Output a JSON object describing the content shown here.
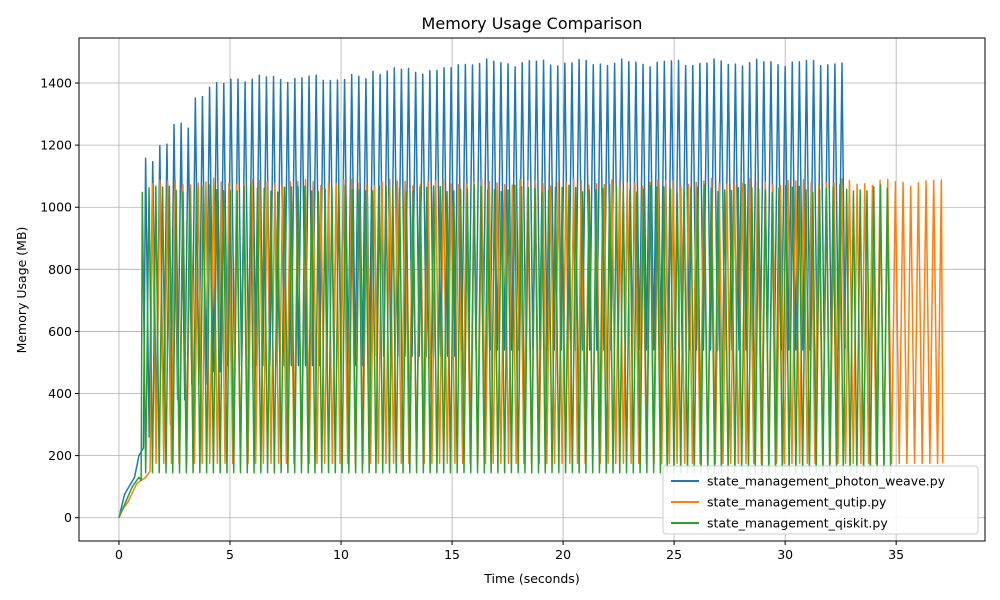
{
  "chart_data": {
    "type": "line",
    "title": "Memory Usage Comparison",
    "xlabel": "Time (seconds)",
    "ylabel": "Memory Usage (MB)",
    "xlim": [
      -1.8,
      39.0
    ],
    "ylim": [
      -75,
      1545
    ],
    "xticks": [
      0,
      5,
      10,
      15,
      20,
      25,
      30,
      35
    ],
    "yticks": [
      0,
      200,
      400,
      600,
      800,
      1000,
      1200,
      1400
    ],
    "grid": true,
    "legend_position": "lower-right",
    "series": [
      {
        "name": "state_management_photon_weave.py",
        "color": "#1f77b4",
        "end_x": 32.7,
        "ramp": [
          [
            0,
            0
          ],
          [
            0.25,
            75
          ],
          [
            0.45,
            100
          ],
          [
            0.7,
            130
          ],
          [
            0.9,
            200
          ],
          [
            1.1,
            225
          ]
        ],
        "cycle_start": 1.2,
        "period": 0.32,
        "levels": [
          {
            "until": 1.6,
            "peak": 1160,
            "trough": 260
          },
          {
            "until": 2.4,
            "peak": 1200,
            "trough": 300
          },
          {
            "until": 3.2,
            "peak": 1260,
            "trough": 380
          },
          {
            "until": 4.0,
            "peak": 1360,
            "trough": 430
          },
          {
            "until": 4.8,
            "peak": 1390,
            "trough": 470
          },
          {
            "until": 11.2,
            "peak": 1415,
            "trough": 490
          },
          {
            "until": 15.2,
            "peak": 1440,
            "trough": 520
          },
          {
            "until": 32.7,
            "peak": 1465,
            "trough": 540
          }
        ],
        "final_point": [
          32.7,
          545
        ]
      },
      {
        "name": "state_management_qutip.py",
        "color": "#ff7f0e",
        "end_x": 37.1,
        "ramp": [
          [
            0,
            10
          ],
          [
            0.4,
            50
          ],
          [
            0.8,
            110
          ],
          [
            1.2,
            130
          ],
          [
            1.4,
            150
          ]
        ],
        "cycle_start": 1.5,
        "period": 0.345,
        "levels": [
          {
            "until": 37.1,
            "peak": 1080,
            "trough": 175
          }
        ],
        "final_point": [
          37.1,
          175
        ]
      },
      {
        "name": "state_management_qiskit.py",
        "color": "#2ca02c",
        "end_x": 34.8,
        "ramp": [
          [
            0,
            0
          ],
          [
            0.3,
            50
          ],
          [
            0.6,
            100
          ],
          [
            0.9,
            130
          ],
          [
            1.0,
            120
          ]
        ],
        "cycle_start": 1.05,
        "period": 0.305,
        "levels": [
          {
            "until": 34.8,
            "peak": 1060,
            "trough": 145
          }
        ],
        "final_point": [
          34.8,
          145
        ]
      }
    ]
  }
}
